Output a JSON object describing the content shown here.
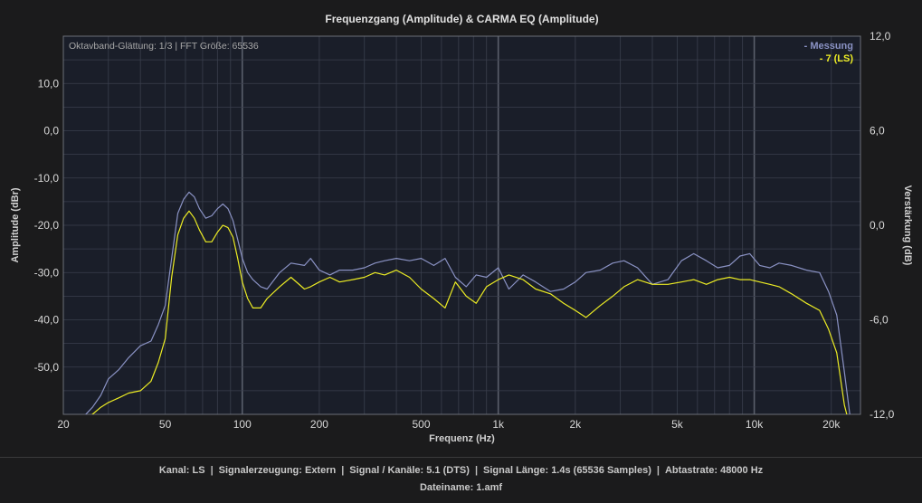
{
  "chart_data": {
    "type": "line",
    "title": "Frequenzgang (Amplitude) & CARMA EQ (Amplitude)",
    "subtitle": "Oktavband-Glättung: 1/3 | FFT Größe: 65536",
    "xlabel": "Frequenz (Hz)",
    "ylabel": "Amplitude (dBr)",
    "y2label": "Verstärkung (dB)",
    "x_scale": "log",
    "xlim": [
      20,
      26000
    ],
    "ylim": [
      -60,
      20
    ],
    "y2lim": [
      -12,
      12
    ],
    "x_ticks": [
      20,
      50,
      100,
      200,
      500,
      1000,
      2000,
      5000,
      10000,
      20000
    ],
    "x_tick_labels": [
      "20",
      "50",
      "100",
      "200",
      "500",
      "1k",
      "2k",
      "5k",
      "10k",
      "20k"
    ],
    "y_ticks": [
      10,
      0,
      -10,
      -20,
      -30,
      -40,
      -50
    ],
    "y_tick_labels": [
      "10,0",
      "0,0",
      "-10,0",
      "-20,0",
      "-30,0",
      "-40,0",
      "-50,0"
    ],
    "y2_ticks": [
      12,
      6,
      0,
      -6,
      -12
    ],
    "y2_tick_labels": [
      "12,0",
      "6,0",
      "0,0",
      "-6,0",
      "-12,0"
    ],
    "grid": true,
    "legend_position": "top-right",
    "series": [
      {
        "name": "- Messung",
        "color": "#8a92c4",
        "x": [
          24,
          26,
          28,
          30,
          33,
          36,
          40,
          44,
          47,
          50,
          53,
          56,
          59,
          62,
          65,
          68,
          72,
          76,
          80,
          84,
          88,
          92,
          96,
          100,
          105,
          110,
          118,
          125,
          140,
          155,
          175,
          185,
          200,
          220,
          240,
          270,
          300,
          330,
          360,
          400,
          450,
          500,
          560,
          620,
          680,
          750,
          820,
          900,
          1000,
          1100,
          1250,
          1400,
          1600,
          1800,
          2000,
          2200,
          2500,
          2800,
          3100,
          3500,
          4000,
          4600,
          5200,
          5800,
          6500,
          7200,
          8000,
          8800,
          9600,
          10500,
          11500,
          12500,
          14000,
          16000,
          18000,
          19500,
          21000,
          22500,
          24000
        ],
        "values": [
          -60.5,
          -58.5,
          -56,
          -52.5,
          -50.5,
          -48,
          -45.5,
          -44.5,
          -41,
          -37,
          -27,
          -17.5,
          -14.5,
          -13,
          -14,
          -16.5,
          -18.5,
          -18,
          -16.5,
          -15.5,
          -16.5,
          -19,
          -23,
          -27,
          -30,
          -31.5,
          -33,
          -33.5,
          -30,
          -28,
          -28.5,
          -27,
          -29.5,
          -30.5,
          -29.5,
          -29.5,
          -29,
          -28,
          -27.5,
          -27,
          -27.5,
          -27,
          -28.5,
          -27,
          -31,
          -33,
          -30.5,
          -31,
          -29,
          -33.5,
          -30.5,
          -32,
          -34,
          -33.5,
          -32,
          -30,
          -29.5,
          -28,
          -27.5,
          -29,
          -32.5,
          -31.5,
          -27.5,
          -26,
          -27.5,
          -29,
          -28.5,
          -26.5,
          -26,
          -28.5,
          -29,
          -28,
          -28.5,
          -29.5,
          -30,
          -34,
          -39,
          -51,
          -63
        ]
      },
      {
        "name": "- 7 (LS)",
        "color": "#ecec24",
        "x": [
          24,
          26,
          28,
          30,
          33,
          36,
          40,
          44,
          47,
          50,
          53,
          56,
          59,
          62,
          65,
          68,
          72,
          76,
          80,
          84,
          88,
          92,
          96,
          100,
          105,
          110,
          118,
          125,
          140,
          155,
          175,
          185,
          200,
          220,
          240,
          270,
          300,
          330,
          360,
          400,
          450,
          500,
          560,
          620,
          680,
          750,
          820,
          900,
          1000,
          1100,
          1250,
          1400,
          1600,
          1800,
          2000,
          2200,
          2500,
          2800,
          3100,
          3500,
          4000,
          4600,
          5200,
          5800,
          6500,
          7200,
          8000,
          8800,
          9600,
          10500,
          11500,
          12500,
          14000,
          16000,
          18000,
          19500,
          21000,
          22500,
          24000
        ],
        "values": [
          -61,
          -60,
          -58.5,
          -57.5,
          -56.5,
          -55.5,
          -55,
          -53,
          -49,
          -44,
          -31,
          -22,
          -18.5,
          -17,
          -18.5,
          -21,
          -23.5,
          -23.5,
          -21.5,
          -20,
          -20.5,
          -22.5,
          -27,
          -32,
          -35.5,
          -37.5,
          -37.5,
          -35.5,
          -33,
          -31,
          -33.5,
          -33,
          -32,
          -31,
          -32,
          -31.5,
          -31,
          -30,
          -30.5,
          -29.5,
          -31,
          -33.5,
          -35.5,
          -37.5,
          -32,
          -35,
          -36.5,
          -33,
          -31.5,
          -30.5,
          -31.5,
          -33.5,
          -34.5,
          -36.5,
          -38,
          -39.5,
          -37,
          -35,
          -33,
          -31.5,
          -32.5,
          -32.5,
          -32,
          -31.5,
          -32.5,
          -31.5,
          -31,
          -31.5,
          -31.5,
          -32,
          -32.5,
          -33,
          -34.5,
          -36.5,
          -38,
          -42,
          -47,
          -58,
          -64
        ]
      }
    ]
  },
  "footer": {
    "kanal": "Kanal: LS",
    "signalerzeugung": "Signalerzeugung: Extern",
    "signal_kanaele": "Signal / Kanäle: 5.1 (DTS)",
    "signal_laenge": "Signal Länge: 1.4s (65536 Samples)",
    "abtastrate": "Abtastrate: 48000 Hz",
    "dateiname": "Dateiname: 1.amf"
  },
  "colors": {
    "background": "#1b1b1c",
    "plot_background": "#1a1e29",
    "grid": "#3a3f4d",
    "major_grid": "#5a5f6b"
  }
}
